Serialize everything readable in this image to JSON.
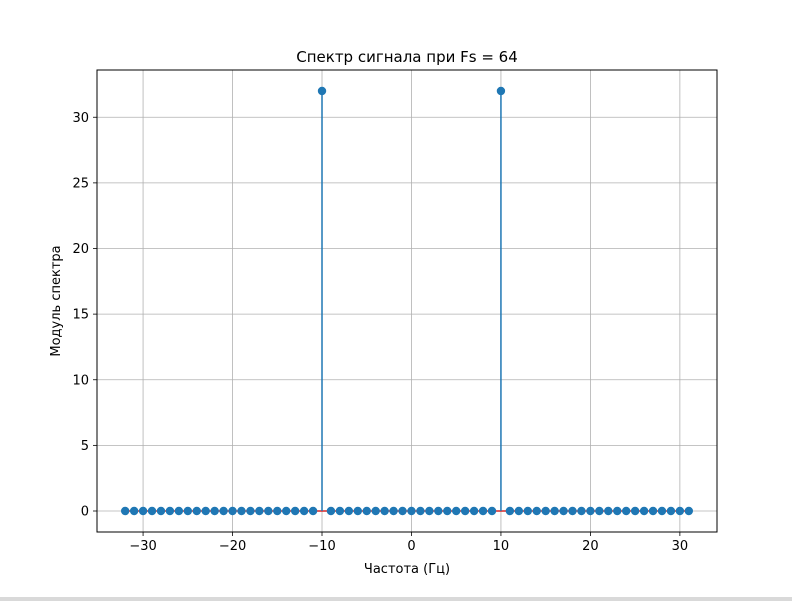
{
  "chart_data": {
    "type": "stem",
    "title": "Спектр сигнала при Fs = 64",
    "xlabel": "Частота (Гц)",
    "ylabel": "Модуль спектра",
    "xlim": [
      -35.15,
      34.15
    ],
    "ylim": [
      -1.6,
      33.6
    ],
    "xticks": [
      -30,
      -20,
      -10,
      0,
      10,
      20,
      30
    ],
    "yticks": [
      0,
      5,
      10,
      15,
      20,
      25,
      30
    ],
    "xtick_labels": [
      "−30",
      "−20",
      "−10",
      "0",
      "10",
      "20",
      "30"
    ],
    "ytick_labels": [
      "0",
      "5",
      "10",
      "15",
      "20",
      "25",
      "30"
    ],
    "grid": true,
    "baseline": 0,
    "x": [
      -32,
      -31,
      -30,
      -29,
      -28,
      -27,
      -26,
      -25,
      -24,
      -23,
      -22,
      -21,
      -20,
      -19,
      -18,
      -17,
      -16,
      -15,
      -14,
      -13,
      -12,
      -11,
      -10,
      -9,
      -8,
      -7,
      -6,
      -5,
      -4,
      -3,
      -2,
      -1,
      0,
      1,
      2,
      3,
      4,
      5,
      6,
      7,
      8,
      9,
      10,
      11,
      12,
      13,
      14,
      15,
      16,
      17,
      18,
      19,
      20,
      21,
      22,
      23,
      24,
      25,
      26,
      27,
      28,
      29,
      30,
      31
    ],
    "values": [
      0,
      0,
      0,
      0,
      0,
      0,
      0,
      0,
      0,
      0,
      0,
      0,
      0,
      0,
      0,
      0,
      0,
      0,
      0,
      0,
      0,
      0,
      32,
      0,
      0,
      0,
      0,
      0,
      0,
      0,
      0,
      0,
      0,
      0,
      0,
      0,
      0,
      0,
      0,
      0,
      0,
      0,
      32,
      0,
      0,
      0,
      0,
      0,
      0,
      0,
      0,
      0,
      0,
      0,
      0,
      0,
      0,
      0,
      0,
      0,
      0,
      0,
      0,
      0
    ],
    "colors": {
      "stem": "#1f77b4",
      "marker": "#1f77b4",
      "baseline": "#d62728",
      "grid": "#b0b0b0",
      "axes": "#000000"
    }
  }
}
